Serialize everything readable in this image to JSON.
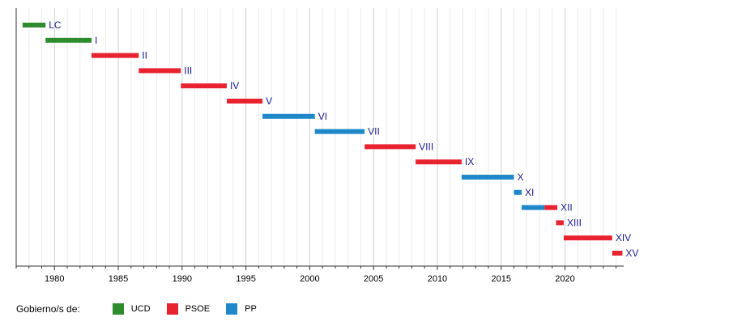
{
  "chart_data": {
    "type": "timeline",
    "x": {
      "min": 1977.0,
      "max": 2024.6,
      "major_ticks": [
        1980,
        1985,
        1990,
        1995,
        2000,
        2005,
        2010,
        2015,
        2020
      ],
      "minor_step": 1
    },
    "bars": [
      {
        "label": "LC",
        "start": 1977.5,
        "end": 1979.3,
        "party": "UCD"
      },
      {
        "label": "I",
        "start": 1979.3,
        "end": 1982.9,
        "party": "UCD"
      },
      {
        "label": "II",
        "start": 1982.9,
        "end": 1986.6,
        "party": "PSOE"
      },
      {
        "label": "III",
        "start": 1986.6,
        "end": 1989.9,
        "party": "PSOE"
      },
      {
        "label": "IV",
        "start": 1989.9,
        "end": 1993.5,
        "party": "PSOE"
      },
      {
        "label": "V",
        "start": 1993.5,
        "end": 1996.3,
        "party": "PSOE"
      },
      {
        "label": "VI",
        "start": 1996.3,
        "end": 2000.4,
        "party": "PP"
      },
      {
        "label": "VII",
        "start": 2000.4,
        "end": 2004.3,
        "party": "PP"
      },
      {
        "label": "VIII",
        "start": 2004.3,
        "end": 2008.3,
        "party": "PSOE"
      },
      {
        "label": "IX",
        "start": 2008.3,
        "end": 2011.9,
        "party": "PSOE"
      },
      {
        "label": "X",
        "start": 2011.9,
        "end": 2016.0,
        "party": "PP"
      },
      {
        "label": "XI",
        "start": 2016.0,
        "end": 2016.6,
        "party": "PP"
      },
      {
        "label": "XII",
        "start": 2016.6,
        "end": 2019.4,
        "party": "PP",
        "segments": [
          {
            "start": 2016.6,
            "end": 2018.4,
            "party": "PP"
          },
          {
            "start": 2018.4,
            "end": 2019.4,
            "party": "PSOE"
          }
        ]
      },
      {
        "label": "XIII",
        "start": 2019.3,
        "end": 2019.9,
        "party": "PSOE"
      },
      {
        "label": "XIV",
        "start": 2019.9,
        "end": 2023.7,
        "party": "PSOE"
      },
      {
        "label": "XV",
        "start": 2023.7,
        "end": 2024.5,
        "party": "PSOE"
      }
    ],
    "parties": [
      {
        "name": "UCD",
        "color": "#2e8b2e"
      },
      {
        "name": "PSOE",
        "color": "#e8222e"
      },
      {
        "name": "PP",
        "color": "#1e88c8"
      }
    ],
    "legend_title": "Gobierno/s de:"
  }
}
